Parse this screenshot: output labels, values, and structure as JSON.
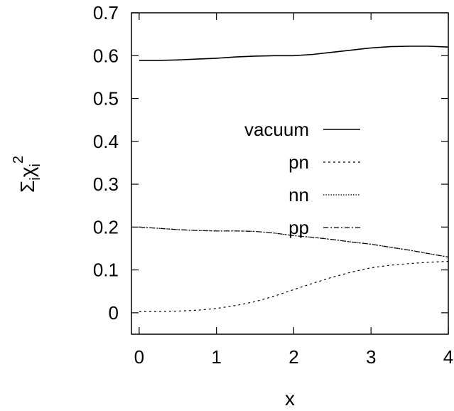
{
  "chart_data": {
    "type": "line",
    "title": "",
    "xlabel": "x",
    "ylabel": {
      "base": "Σ",
      "sub1": "i",
      "mid": "χ",
      "sub2": "i",
      "sup": "2"
    },
    "xlim": [
      -0.1,
      4.0
    ],
    "ylim": [
      -0.05,
      0.7
    ],
    "xticks": [
      0,
      1,
      2,
      3,
      4
    ],
    "yticks": [
      0,
      0.1,
      0.2,
      0.3,
      0.4,
      0.5,
      0.6,
      0.7
    ],
    "xtick_labels": [
      "0",
      "1",
      "2",
      "3",
      "4"
    ],
    "ytick_labels": [
      "0",
      "0.1",
      "0.2",
      "0.3",
      "0.4",
      "0.5",
      "0.6",
      "0.7"
    ],
    "grid": false,
    "legend_position": "center-right",
    "series": [
      {
        "name": "vacuum",
        "dash": "solid",
        "x": [
          0,
          0.25,
          0.5,
          0.75,
          1.0,
          1.25,
          1.5,
          1.75,
          2.0,
          2.25,
          2.5,
          2.75,
          3.0,
          3.25,
          3.5,
          3.75,
          4.0
        ],
        "y": [
          0.589,
          0.589,
          0.59,
          0.592,
          0.594,
          0.597,
          0.599,
          0.6,
          0.6,
          0.603,
          0.608,
          0.613,
          0.618,
          0.621,
          0.622,
          0.622,
          0.62
        ]
      },
      {
        "name": "pn",
        "dash": "dashed",
        "x": [
          0,
          0.25,
          0.5,
          0.75,
          1.0,
          1.25,
          1.5,
          1.75,
          2.0,
          2.25,
          2.5,
          2.75,
          3.0,
          3.25,
          3.5,
          3.75,
          4.0
        ],
        "y": [
          0.003,
          0.003,
          0.004,
          0.006,
          0.01,
          0.017,
          0.026,
          0.039,
          0.054,
          0.069,
          0.083,
          0.095,
          0.105,
          0.111,
          0.115,
          0.118,
          0.12
        ]
      },
      {
        "name": "nn",
        "dash": "dotted",
        "x": [
          0,
          0.25,
          0.5,
          0.75,
          1.0,
          1.25,
          1.5,
          1.75,
          2.0,
          2.25,
          2.5,
          2.75,
          3.0,
          3.25,
          3.5,
          3.75,
          4.0
        ],
        "y": [
          0.2,
          0.197,
          0.194,
          0.192,
          0.191,
          0.191,
          0.19,
          0.186,
          0.18,
          0.176,
          0.171,
          0.165,
          0.16,
          0.153,
          0.146,
          0.138,
          0.13
        ]
      },
      {
        "name": "pp",
        "dash": "dashdot",
        "x": [
          0,
          0.25,
          0.5,
          0.75,
          1.0,
          1.25,
          1.5,
          1.75,
          2.0,
          2.25,
          2.5,
          2.75,
          3.0,
          3.25,
          3.5,
          3.75,
          4.0
        ],
        "y": [
          0.2,
          0.197,
          0.194,
          0.192,
          0.191,
          0.191,
          0.19,
          0.186,
          0.18,
          0.176,
          0.171,
          0.165,
          0.16,
          0.153,
          0.146,
          0.138,
          0.13
        ]
      }
    ]
  }
}
